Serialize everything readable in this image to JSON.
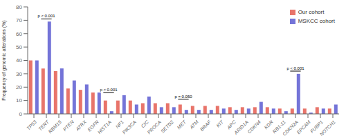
{
  "chart_data": {
    "type": "bar",
    "categories": [
      "TP53",
      "TERT",
      "RBM15",
      "PTEN",
      "ATRX",
      "EGFR",
      "HIST1A",
      "NF1",
      "PIK3CA",
      "CIC",
      "PROCA",
      "SETD2",
      "MET",
      "ATM",
      "BRAF",
      "KIT",
      "APC",
      "ARID1A",
      "CDKN4",
      "KDR",
      "RB1-11",
      "CDKN2A",
      "EPCAM",
      "FUBP1",
      "NOTCH1"
    ],
    "series": [
      {
        "name": "Our cohort",
        "color": "#E8746A",
        "values": [
          40,
          34,
          32,
          19,
          18,
          16,
          10,
          10,
          10,
          8,
          8,
          8,
          7,
          6,
          6,
          6,
          5,
          5,
          5,
          5,
          4,
          4,
          4,
          5,
          4
        ]
      },
      {
        "name": "MSKCC cohort",
        "color": "#7474D8",
        "values": [
          40,
          69,
          34,
          25,
          22,
          16,
          2,
          14,
          7,
          13,
          5,
          5,
          3,
          3,
          3,
          4,
          3,
          4,
          9,
          4,
          2,
          30,
          1,
          4,
          7
        ]
      }
    ],
    "y_label": "Frequency of genomic alterations (%)",
    "ylim": [
      0,
      80
    ],
    "yticks": [
      0,
      10,
      20,
      30,
      40,
      50,
      60,
      70,
      80
    ],
    "annotations": [
      {
        "category": "TERT",
        "text": "p < 0.001",
        "y": 71
      },
      {
        "category": "HIST1A",
        "text": "p < 0.001",
        "y": 16
      },
      {
        "category": "CDKN2A",
        "text": "p < 0.001",
        "y": 32
      },
      {
        "category": "MET",
        "text": "p = 0.050",
        "y": 11
      }
    ],
    "legend": "upper right",
    "grid": false
  }
}
